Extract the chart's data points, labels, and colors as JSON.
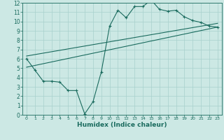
{
  "xlabel": "Humidex (Indice chaleur)",
  "ylabel": "",
  "bg_color": "#cce8e4",
  "line_color": "#1a6b5e",
  "grid_color": "#a8d0cc",
  "xlim": [
    -0.5,
    23.5
  ],
  "ylim": [
    0,
    12
  ],
  "xticks": [
    0,
    1,
    2,
    3,
    4,
    5,
    6,
    7,
    8,
    9,
    10,
    11,
    12,
    13,
    14,
    15,
    16,
    17,
    18,
    19,
    20,
    21,
    22,
    23
  ],
  "yticks": [
    0,
    1,
    2,
    3,
    4,
    5,
    6,
    7,
    8,
    9,
    10,
    11,
    12
  ],
  "data_line": {
    "x": [
      0,
      1,
      2,
      3,
      4,
      5,
      6,
      7,
      8,
      9,
      10,
      11,
      12,
      13,
      14,
      15,
      16,
      17,
      18,
      19,
      20,
      21,
      22,
      23
    ],
    "y": [
      6.0,
      4.8,
      3.6,
      3.6,
      3.5,
      2.6,
      2.6,
      0.1,
      1.4,
      4.6,
      9.5,
      11.2,
      10.4,
      11.6,
      11.6,
      12.3,
      11.3,
      11.1,
      11.2,
      10.5,
      10.1,
      9.9,
      9.5,
      9.4
    ]
  },
  "trend_line1": {
    "x": [
      0,
      23
    ],
    "y": [
      5.1,
      9.4
    ]
  },
  "trend_line2": {
    "x": [
      0,
      23
    ],
    "y": [
      6.3,
      9.8
    ]
  }
}
